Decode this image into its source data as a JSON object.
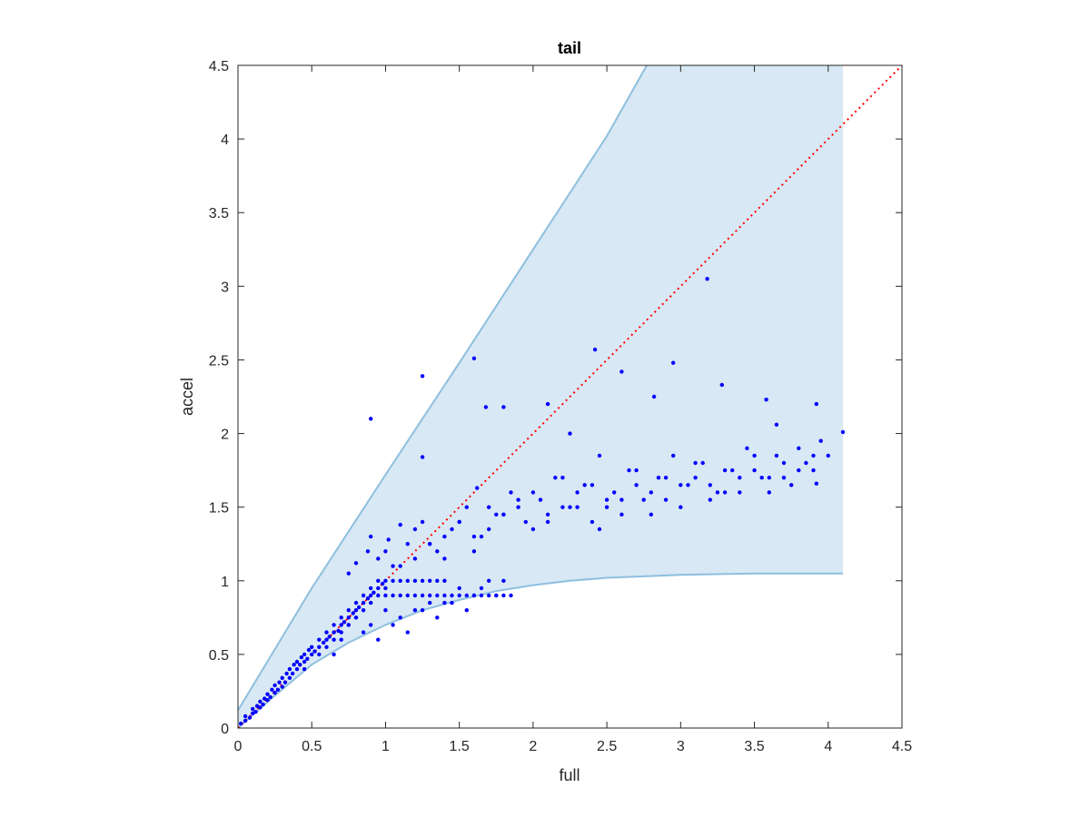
{
  "chart_data": {
    "type": "scatter",
    "title": "tail",
    "xlabel": "full",
    "ylabel": "accel",
    "xlim": [
      0,
      4.5
    ],
    "ylim": [
      0,
      4.5
    ],
    "xticks": [
      "0",
      "0.5",
      "1",
      "1.5",
      "2",
      "2.5",
      "3",
      "3.5",
      "4",
      "4.5"
    ],
    "yticks": [
      "0",
      "0.5",
      "1",
      "1.5",
      "2",
      "2.5",
      "3",
      "3.5",
      "4",
      "4.5"
    ],
    "grid": false,
    "legend": "none",
    "colors": {
      "points": "#0000ff",
      "band_fill": "#d8e8f4",
      "band_edge": "#8ebfdf",
      "reference_line": "#ff0000",
      "axes": "#262626"
    },
    "reference_line": {
      "x": [
        0,
        4.5
      ],
      "y": [
        0,
        4.5
      ],
      "style": "dotted"
    },
    "band": {
      "upper": {
        "x": [
          0,
          0.5,
          1.0,
          1.5,
          2.0,
          2.5,
          2.77,
          4.1
        ],
        "y": [
          0.12,
          0.95,
          1.72,
          2.48,
          3.25,
          4.02,
          4.5,
          4.5
        ]
      },
      "lower": {
        "x": [
          0,
          0.25,
          0.5,
          0.75,
          1.0,
          1.25,
          1.5,
          1.75,
          2.0,
          2.25,
          2.5,
          3.0,
          3.5,
          4.1
        ],
        "y": [
          0,
          0.22,
          0.43,
          0.58,
          0.7,
          0.8,
          0.87,
          0.93,
          0.97,
          1.0,
          1.02,
          1.04,
          1.05,
          1.05
        ]
      }
    },
    "series": [
      {
        "x": [
          0.02,
          0.05,
          0.05,
          0.08,
          0.1,
          0.1,
          0.12,
          0.13,
          0.15,
          0.15,
          0.17,
          0.18,
          0.2,
          0.2,
          0.22,
          0.23,
          0.25,
          0.25,
          0.27,
          0.28,
          0.3,
          0.3,
          0.32,
          0.33,
          0.35,
          0.35,
          0.37,
          0.38,
          0.4,
          0.4,
          0.42,
          0.43,
          0.45,
          0.45,
          0.47,
          0.48,
          0.5,
          0.5,
          0.52,
          0.55,
          0.55,
          0.58,
          0.6,
          0.6,
          0.62,
          0.65,
          0.65,
          0.68,
          0.7,
          0.7,
          0.72,
          0.75,
          0.75,
          0.78,
          0.8,
          0.8,
          0.82,
          0.85,
          0.85,
          0.88,
          0.9,
          0.9,
          0.92,
          0.95,
          0.95,
          0.98,
          1.0,
          1.0,
          1.05,
          1.1,
          1.15,
          1.2,
          1.25,
          1.3,
          1.35,
          1.4,
          0.45,
          0.55,
          0.65,
          0.7,
          0.75,
          0.8,
          0.85,
          0.9,
          0.95,
          1.0,
          1.05,
          1.1,
          1.15,
          1.2,
          1.25,
          1.3,
          1.35,
          1.4,
          1.45,
          1.5,
          1.55,
          1.6,
          1.65,
          1.7,
          1.75,
          1.8,
          1.85,
          0.6,
          0.8,
          1.0,
          1.2,
          1.4,
          1.6,
          1.8,
          0.7,
          0.9,
          1.1,
          1.3,
          1.5,
          1.7,
          0.65,
          0.85,
          1.05,
          1.25,
          1.45,
          1.65,
          0.75,
          0.95,
          1.15,
          1.35,
          1.55,
          1.75,
          0.9,
          1.0,
          1.1,
          1.2,
          1.3,
          1.4,
          1.5,
          1.6,
          1.7,
          1.8,
          1.9,
          2.0,
          2.1,
          2.2,
          2.3,
          2.4,
          2.5,
          2.6,
          2.7,
          2.8,
          2.9,
          3.0,
          3.1,
          3.2,
          3.3,
          3.4,
          3.5,
          3.6,
          3.7,
          3.8,
          3.9,
          4.0,
          4.1,
          1.05,
          1.15,
          1.25,
          1.35,
          1.45,
          1.55,
          1.65,
          1.75,
          1.85,
          1.95,
          2.05,
          2.15,
          2.25,
          2.35,
          2.45,
          2.55,
          2.65,
          2.75,
          2.85,
          2.95,
          3.05,
          3.15,
          3.25,
          3.35,
          3.45,
          3.55,
          3.65,
          3.75,
          3.85,
          3.95,
          1.2,
          1.4,
          1.6,
          1.8,
          2.0,
          2.2,
          2.4,
          2.6,
          2.8,
          3.0,
          3.2,
          3.4,
          3.6,
          3.8,
          1.3,
          1.5,
          1.7,
          1.9,
          2.1,
          2.3,
          2.5,
          2.7,
          2.9,
          3.1,
          3.3,
          3.5,
          3.7,
          3.9,
          1.1,
          1.25,
          1.6,
          1.68,
          1.8,
          2.1,
          2.25,
          2.42,
          2.6,
          2.82,
          2.95,
          3.18,
          3.28,
          3.58,
          3.65,
          3.92,
          3.92,
          0.9,
          1.25,
          1.62,
          2.45,
          0.75,
          0.8,
          0.88,
          0.95,
          1.02
        ],
        "y": [
          0.03,
          0.05,
          0.08,
          0.07,
          0.1,
          0.13,
          0.11,
          0.15,
          0.14,
          0.18,
          0.16,
          0.2,
          0.19,
          0.23,
          0.21,
          0.26,
          0.24,
          0.29,
          0.26,
          0.31,
          0.28,
          0.34,
          0.31,
          0.37,
          0.34,
          0.4,
          0.37,
          0.43,
          0.4,
          0.45,
          0.43,
          0.48,
          0.45,
          0.5,
          0.47,
          0.53,
          0.5,
          0.55,
          0.52,
          0.55,
          0.6,
          0.58,
          0.6,
          0.65,
          0.62,
          0.65,
          0.7,
          0.66,
          0.7,
          0.75,
          0.72,
          0.75,
          0.8,
          0.78,
          0.8,
          0.85,
          0.82,
          0.85,
          0.9,
          0.88,
          0.9,
          0.95,
          0.92,
          0.95,
          1.0,
          0.98,
          1.0,
          0.95,
          1.0,
          1.0,
          1.0,
          1.0,
          1.0,
          1.0,
          1.0,
          1.0,
          0.4,
          0.5,
          0.6,
          0.65,
          0.7,
          0.75,
          0.8,
          0.85,
          0.9,
          0.9,
          0.9,
          0.9,
          0.9,
          0.9,
          0.9,
          0.9,
          0.9,
          0.9,
          0.9,
          0.9,
          0.9,
          0.9,
          0.9,
          0.9,
          0.9,
          0.9,
          0.9,
          0.55,
          0.75,
          0.8,
          0.8,
          0.85,
          0.9,
          1.0,
          0.6,
          0.7,
          0.75,
          0.85,
          0.95,
          1.0,
          0.5,
          0.65,
          0.7,
          0.8,
          0.85,
          0.95,
          0.7,
          0.6,
          0.65,
          0.75,
          0.8,
          0.9,
          1.3,
          1.2,
          1.1,
          1.35,
          1.25,
          1.15,
          1.4,
          1.3,
          1.5,
          1.45,
          1.55,
          1.6,
          1.4,
          1.7,
          1.5,
          1.65,
          1.55,
          1.45,
          1.75,
          1.6,
          1.7,
          1.5,
          1.8,
          1.65,
          1.75,
          1.6,
          1.85,
          1.7,
          1.8,
          1.9,
          1.75,
          1.85,
          2.01,
          1.1,
          1.25,
          1.4,
          1.2,
          1.35,
          1.5,
          1.3,
          1.45,
          1.6,
          1.4,
          1.55,
          1.7,
          1.5,
          1.65,
          1.35,
          1.6,
          1.75,
          1.55,
          1.7,
          1.85,
          1.65,
          1.8,
          1.6,
          1.75,
          1.9,
          1.7,
          1.85,
          1.65,
          1.8,
          1.95,
          1.15,
          1.3,
          1.2,
          1.45,
          1.35,
          1.5,
          1.4,
          1.55,
          1.45,
          1.65,
          1.55,
          1.7,
          1.6,
          1.75,
          1.25,
          1.4,
          1.35,
          1.5,
          1.45,
          1.6,
          1.5,
          1.65,
          1.55,
          1.7,
          1.6,
          1.75,
          1.7,
          1.85,
          1.38,
          1.84,
          2.51,
          2.18,
          2.18,
          2.2,
          2.0,
          2.57,
          2.42,
          2.25,
          2.48,
          3.05,
          2.33,
          2.23,
          2.06,
          2.2,
          1.66,
          2.1,
          2.39,
          1.63,
          1.85,
          1.05,
          1.12,
          1.2,
          1.15,
          1.28
        ]
      }
    ]
  }
}
